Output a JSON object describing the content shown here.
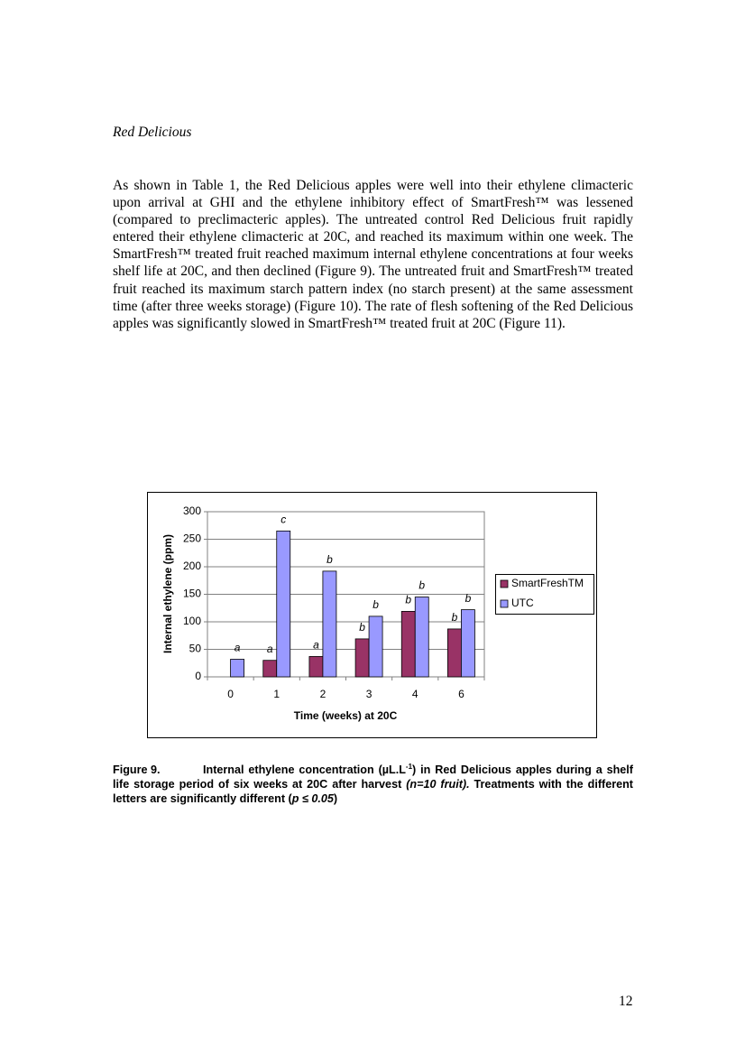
{
  "heading": "Red Delicious",
  "paragraph": "As shown in Table 1, the Red Delicious apples were well into their ethylene climacteric upon arrival at GHI and the ethylene inhibitory effect of SmartFresh™ was lessened (compared to preclimacteric apples).  The untreated control Red Delicious fruit rapidly entered their ethylene climacteric at 20C, and reached its maximum within one week. The SmartFresh™ treated fruit reached maximum internal ethylene concentrations at four weeks shelf life at 20C, and then declined (Figure 9). The untreated fruit and SmartFresh™ treated fruit reached its maximum starch pattern index (no starch present) at the same assessment time (after three weeks storage) (Figure 10). The rate of flesh softening of the Red Delicious apples was significantly slowed in SmartFresh™ treated fruit at 20C (Figure 11).",
  "chart_data": {
    "type": "bar",
    "x_label": "Time (weeks) at 20C",
    "y_label": "Internal ethylene (ppm)",
    "categories": [
      "0",
      "1",
      "2",
      "3",
      "4",
      "6"
    ],
    "series": [
      {
        "name": "SmartFreshTM",
        "color": "#993366",
        "values": [
          null,
          30,
          37,
          69,
          119,
          87
        ],
        "annotations": [
          null,
          "a",
          "a",
          "b",
          "b",
          "b"
        ]
      },
      {
        "name": "UTC",
        "color": "#9999ff",
        "values": [
          32,
          265,
          192,
          110,
          145,
          122
        ],
        "annotations": [
          "a",
          "c",
          "b",
          "b",
          "b",
          "b"
        ]
      }
    ],
    "ylim": [
      0,
      300
    ],
    "yticks": [
      0,
      50,
      100,
      150,
      200,
      250,
      300
    ],
    "grid": true,
    "legend": "right"
  },
  "caption": {
    "label": "Figure 9.",
    "parts": [
      "Internal ethylene concentration (µL.L",
      "-1",
      ") in Red Delicious apples during a shelf life storage period of six weeks at 20C after harvest ",
      "(n=10 fruit).",
      " Treatments with the different letters are significantly different (",
      "p ≤ 0.05",
      ")"
    ]
  },
  "page_number": "12"
}
